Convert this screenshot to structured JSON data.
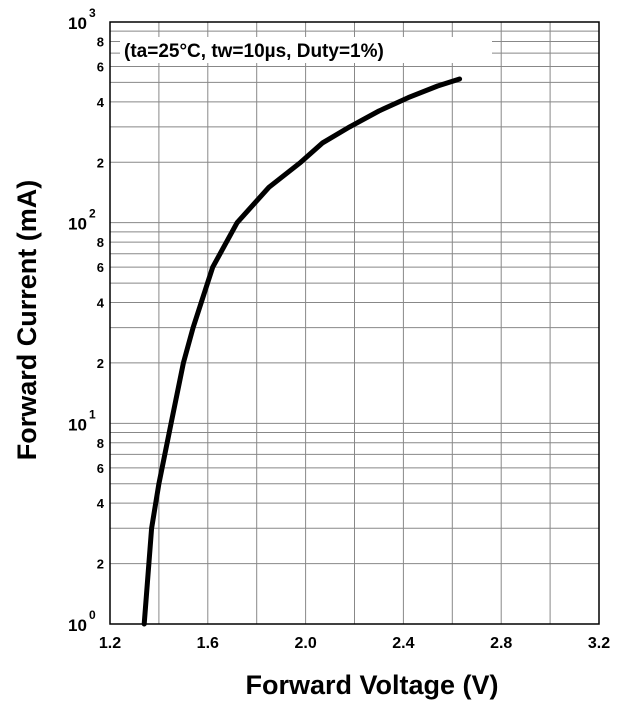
{
  "chart_data": {
    "type": "line",
    "annotation": "(ta=25°C, tw=10µs, Duty=1%)",
    "xlabel": "Forward Voltage (V)",
    "ylabel": "Forward Current (mA)",
    "xlim": [
      1.2,
      3.2
    ],
    "ylim": [
      1,
      1000
    ],
    "y_scale": "log",
    "grid": true,
    "x_ticks": [
      {
        "value": 1.2,
        "label": "1.2"
      },
      {
        "value": 1.6,
        "label": "1.6"
      },
      {
        "value": 2.0,
        "label": "2.0"
      },
      {
        "value": 2.4,
        "label": "2.4"
      },
      {
        "value": 2.8,
        "label": "2.8"
      },
      {
        "value": 3.2,
        "label": "3.2"
      }
    ],
    "y_decade_labels": [
      {
        "value": 1,
        "base": "10",
        "exp": "0"
      },
      {
        "value": 10,
        "base": "10",
        "exp": "1"
      },
      {
        "value": 100,
        "base": "10",
        "exp": "2"
      },
      {
        "value": 1000,
        "base": "10",
        "exp": "3"
      }
    ],
    "y_minor_labels": [
      {
        "value": 2,
        "label": "2"
      },
      {
        "value": 4,
        "label": "4"
      },
      {
        "value": 6,
        "label": "6"
      },
      {
        "value": 8,
        "label": "8"
      },
      {
        "value": 20,
        "label": "2"
      },
      {
        "value": 40,
        "label": "4"
      },
      {
        "value": 60,
        "label": "6"
      },
      {
        "value": 80,
        "label": "8"
      },
      {
        "value": 200,
        "label": "2"
      },
      {
        "value": 400,
        "label": "4"
      },
      {
        "value": 600,
        "label": "6"
      },
      {
        "value": 800,
        "label": "8"
      }
    ],
    "series": [
      {
        "color": "#000000",
        "x": [
          1.34,
          1.37,
          1.4,
          1.45,
          1.5,
          1.54,
          1.62,
          1.72,
          1.85,
          1.98,
          2.07,
          2.18,
          2.3,
          2.42,
          2.54,
          2.63
        ],
        "y": [
          1,
          3,
          5,
          10,
          20,
          30,
          60,
          100,
          150,
          200,
          250,
          300,
          360,
          420,
          480,
          520
        ]
      }
    ]
  }
}
